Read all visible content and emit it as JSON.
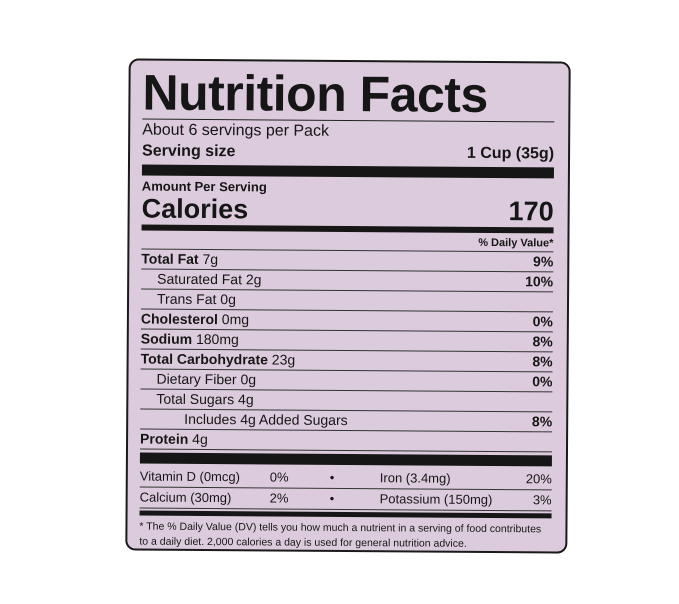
{
  "title": "Nutrition Facts",
  "servings": "About 6 servings per Pack",
  "serving_size": {
    "label": "Serving size",
    "value": "1 Cup (35g)"
  },
  "amount_per_serving": "Amount Per Serving",
  "calories": {
    "label": "Calories",
    "value": "170"
  },
  "daily_value_header": "% Daily Value*",
  "nutrients": [
    {
      "name": "Total Fat",
      "amount": "7g",
      "dv": "9%",
      "bold": true,
      "indent": 0
    },
    {
      "name": "Saturated Fat",
      "amount": "2g",
      "dv": "10%",
      "bold": false,
      "indent": 1
    },
    {
      "name": "Trans Fat",
      "amount": "0g",
      "dv": "",
      "bold": false,
      "indent": 1
    },
    {
      "name": "Cholesterol",
      "amount": "0mg",
      "dv": "0%",
      "bold": true,
      "indent": 0
    },
    {
      "name": "Sodium",
      "amount": "180mg",
      "dv": "8%",
      "bold": true,
      "indent": 0
    },
    {
      "name": "Total Carbohydrate",
      "amount": "23g",
      "dv": "8%",
      "bold": true,
      "indent": 0
    },
    {
      "name": "Dietary Fiber",
      "amount": "0g",
      "dv": "0%",
      "bold": false,
      "indent": 1
    },
    {
      "name": "Total Sugars",
      "amount": "4g",
      "dv": "",
      "bold": false,
      "indent": 1
    },
    {
      "name": "Includes 4g",
      "amount": "Added Sugars",
      "dv": "8%",
      "bold": false,
      "indent": 2
    },
    {
      "name": "Protein",
      "amount": "4g",
      "dv": "",
      "bold": true,
      "indent": 0
    }
  ],
  "vitamins": [
    {
      "left": "Vitamin D (0mcg)",
      "left_dv": "0%",
      "right": "Iron (3.4mg)",
      "right_dv": "20%"
    },
    {
      "left": "Calcium (30mg)",
      "left_dv": "2%",
      "right": "Potassium (150mg)",
      "right_dv": "3%"
    }
  ],
  "bullet": "•",
  "footnote": "* The % Daily Value (DV) tells you how much a nutrient in a serving of food contributes to a daily diet. 2,000 calories a day is used for general nutrition advice.",
  "colors": {
    "label_bg": "#dccbdd",
    "ink": "#161616"
  }
}
